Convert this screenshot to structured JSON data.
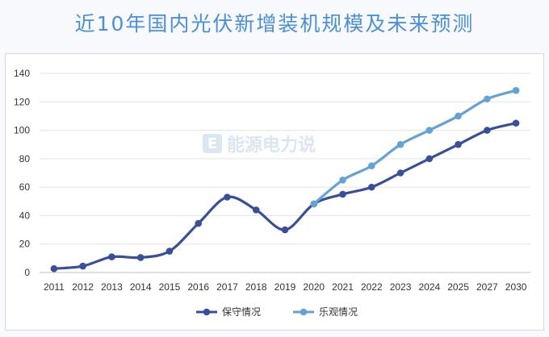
{
  "title": "近10年国内光伏新增装机规模及未来预测",
  "watermark": {
    "text": "能源电力说",
    "logo_letter": "E"
  },
  "colors": {
    "conservative": "#3a4f9a",
    "optimistic": "#64a2d6",
    "grid": "#e3e3e3",
    "title": "#4a8fd8"
  },
  "chart_data": {
    "type": "line",
    "title": "近10年国内光伏新增装机规模及未来预测",
    "xlabel": "",
    "ylabel": "",
    "categories": [
      "2011",
      "2012",
      "2013",
      "2014",
      "2015",
      "2016",
      "2017",
      "2018",
      "2019",
      "2020",
      "2021",
      "2022",
      "2023",
      "2024",
      "2025",
      "2027",
      "2030"
    ],
    "ylim": [
      0,
      140
    ],
    "yticks": [
      0,
      20,
      40,
      60,
      80,
      100,
      120,
      140
    ],
    "grid": true,
    "legend_position": "bottom",
    "series": [
      {
        "name": "保守情况",
        "color": "#3a4f9a",
        "values": [
          2.7,
          4.5,
          11,
          10.5,
          15,
          34.5,
          53,
          44,
          30,
          48.2,
          55,
          60,
          70,
          80,
          90,
          100,
          105
        ]
      },
      {
        "name": "乐观情况",
        "color": "#64a2d6",
        "values": [
          null,
          null,
          null,
          null,
          null,
          null,
          null,
          null,
          null,
          48.2,
          65,
          75,
          90,
          100,
          110,
          122,
          128
        ]
      }
    ]
  }
}
